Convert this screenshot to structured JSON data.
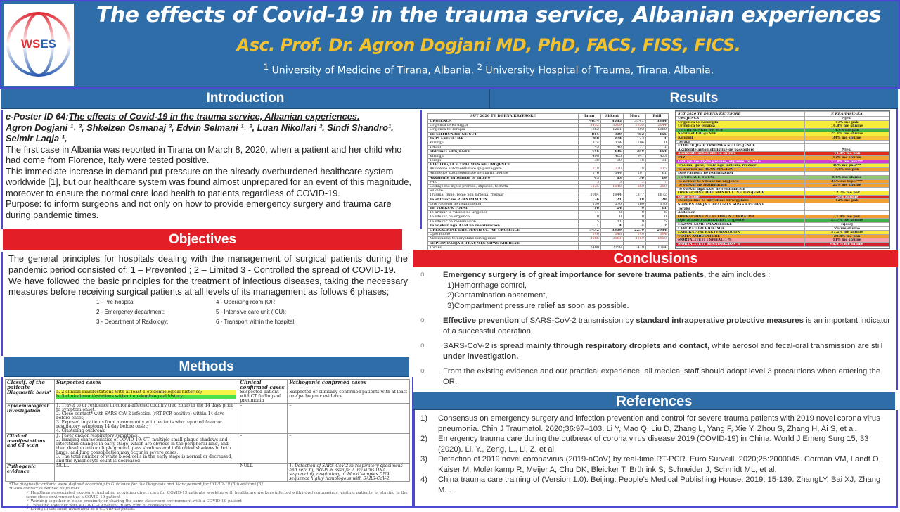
{
  "header": {
    "title": "The effects of Covid-19 in the trauma service, Albanian experiences",
    "author": "Asc. Prof. Dr. Agron Dogjani MD, PhD, FACS, FISS, FICS.",
    "affil1_sup": "1",
    "affil1": "University of Medicine of Tirana, Albania.",
    "affil2_sup": "2",
    "affil2": "University Hospital of Trauma, Tirana, Albania.",
    "logo_text": "WSES",
    "colors": {
      "header": "#2f6da8",
      "author": "#f2c12e",
      "section_red": "#e41e26"
    }
  },
  "sections": {
    "introduction": "Introduction",
    "results": "Results",
    "objectives": "Objectives",
    "methods": "Methods",
    "conclusions": "Conclusions",
    "references": "References"
  },
  "introduction": {
    "poster_id": "e-Poster ID 64:",
    "poster_title": "The effects of Covid-19 in the trauma service, Albanian experiences.",
    "authors": "Agron Dogjani ¹˒ ², Shkelzen Osmanaj ², Edvin Selmani ¹˒ ², Luan Nikollari ², Sindi Shandro¹, Seimir Laqja ¹,",
    "p1": "The first case in Albania was reported in Tirana on March 8, 2020, when a patient and her child who had come from Florence, Italy were tested positive.",
    "p2": "This immediate increase in demand put pressure on the already overburdened healthcare system worldwide [1], but our healthcare system was found almost unprepared for an event of this magnitude, moreover to ensure the normal care load health to patients regardless of COVID-19.",
    "p3": "Purpose: to inform surgeons and not only on how to provide emergency surgery and trauma care during pandemic times."
  },
  "objectives": {
    "p1": "The general principles for hospitals dealing with the management of surgical patients during the pandemic period consisted of; 1 – Prevented ; 2 – Limited  3 - Controlled the spread of COVID-19.",
    "p2": "We have followed the basic principles for the treatment of infectious diseases, taking the necessary measures before receiving surgical patients at all levels of its management as follows 6 phases;",
    "phases": [
      "1 - Pre-hospital",
      "2 - Emergency department:",
      "3 - Department of Radiology:",
      "4 - Operating room (OR",
      "5 - Intensive care unit (ICU):",
      "6 - Transport within the hospital:"
    ]
  },
  "results_table_left": {
    "header": [
      "SUT 2020 TE DHENA KRYESORE",
      "Janar",
      "Shkurt",
      "Mars",
      "Prill"
    ],
    "rows": [
      [
        "URGJENCA",
        "4654",
        "4565",
        "3141",
        "3384",
        1
      ],
      [
        "Urgjenca te Kirurgjia",
        "3432",
        "3309",
        "2259",
        "2044",
        0
      ],
      [
        "Urgjenca te Terapia",
        "1262",
        "1251",
        "892",
        "1360",
        0
      ],
      [
        "TE SHTRUARIT NE SUT",
        "815",
        "809",
        "482",
        "465",
        1
      ],
      [
        "Te PLANIFIKUAR",
        "369",
        "374",
        "123",
        "1",
        1
      ],
      [
        "Kirurgji",
        "324",
        "334",
        "106",
        "0",
        0
      ],
      [
        "Terapi",
        "45",
        "40",
        "17",
        "1",
        0
      ],
      [
        "Shtrimet URGJENTE",
        "446",
        "435",
        "359",
        "464",
        1
      ],
      [
        "Kirurgji",
        "408",
        "405",
        "341",
        "433",
        0
      ],
      [
        "Terapi",
        "38",
        "30",
        "18",
        "31",
        0
      ],
      [
        "ETIOLOGJIA E TRAUMES NE URGJENCE",
        "",
        "",
        "",
        "",
        1
      ],
      [
        "Aksidente automobilistike qe passagjere",
        "218",
        "220",
        "70",
        "115",
        0
      ],
      [
        "Aksidente automobilistike qe marrin goditje",
        "176",
        "144",
        "107",
        "61",
        0
      ],
      [
        "Aksidente automobil te shtrire",
        "45",
        "63",
        "30",
        "19",
        1
      ],
      [
        "PAZ",
        "5",
        "5",
        "2",
        "7",
        0
      ],
      [
        "Godinje me mjete prerese, shpuese, te forta",
        "1125",
        "1140",
        "850",
        "250",
        0
      ],
      [
        "Suicide",
        "",
        "",
        "",
        "",
        0
      ],
      [
        "Trauma, gune, renie nga lartesia, rrezuar",
        "2084",
        "1944",
        "1377",
        "1672",
        0
      ],
      [
        "Te shtruar ne REANIMACION",
        "26",
        "21",
        "18",
        "28",
        1
      ],
      [
        "Dite Pacienti ne reanimacion",
        "150",
        "170",
        "160",
        "170",
        0
      ],
      [
        "TE VDEKUR TOTAL",
        "16",
        "24",
        "9",
        "11",
        1
      ],
      [
        "Te ardhur te vdekur ne urgjence",
        "11",
        "8",
        "0",
        "6",
        0
      ],
      [
        "Te vdekur ne urgjence",
        "0",
        "0",
        "0",
        "0",
        0
      ],
      [
        "Te vdekur ne reanimacion",
        "5",
        "11",
        "9",
        "5",
        0
      ],
      [
        "Te vdekur nga AAM ne reanimacion",
        "1",
        "4",
        "4",
        "2",
        1
      ],
      [
        "OPERACIONE DHE MANIPUL. NE URGJENCE",
        "3432",
        "3309",
        "2259",
        "2044",
        1
      ],
      [
        "Operacione",
        "146",
        "148",
        "140",
        "194",
        0
      ],
      [
        "Manipulime te ndryshme kirurgjikale",
        "3286",
        "3161",
        "2159",
        "1850",
        0
      ],
      [
        "SHPERNDARJA E TRAUMES SIPAS KREHEVE",
        "",
        "",
        "",
        "",
        1
      ],
      [
        "Toraks",
        "2400",
        "2258",
        "1419",
        "1794",
        0
      ]
    ]
  },
  "results_table_right": {
    "header": [
      "SUT 2020 TE DHENA KRYESORE",
      "E KRAHASUARA"
    ],
    "rows": [
      [
        "URGJENCA",
        "Njesi",
        "#ffffff"
      ],
      [
        "Urgjenca te Kirurgjia",
        "13% me pak",
        "#f7ec3a"
      ],
      [
        "Urgjenca te Terapia",
        "16.8% me shume",
        "#f7ec3a"
      ],
      [
        "TE SHTRUARIT NE SUT",
        "4.8% me pak",
        "#3fb24a"
      ],
      [
        "Shtrimet URGJENTE",
        "25.1% me shume",
        "#f7ec3a"
      ],
      [
        "Kirurgji",
        "34% me shume",
        "#f5c43a"
      ],
      [
        "Terapi",
        "",
        "#ffffff"
      ],
      [
        "ETIOLOGJIA E TRAUMES NE URGJENCE",
        "",
        "#ffffff"
      ],
      [
        "Aksidente automobilistike qe passagjere",
        "Njesi",
        "#ffffff"
      ],
      [
        "Aksidente automobil te shtrire",
        "44.8% me pak",
        "#e0281e"
      ],
      [
        "PAZ",
        "13% me shume",
        "#f0a030"
      ],
      [
        "Godinje me mjete prerese, shpuese, te forta",
        "17.8% me pak***",
        "#d23ad8"
      ],
      [
        "Trauma, gune, renie nga lartesia, rrezuar",
        "10% me pak***",
        "#f7ec3a"
      ],
      [
        "Te shtruar ne REANIMACION",
        "7.8% me pak",
        "#f0a030"
      ],
      [
        "Dite Pacienti ne reanimacion",
        "",
        "#ffffff"
      ],
      [
        "TE VDEKUR TOTAL",
        "8.6% me shume",
        "#8cc873"
      ],
      [
        "Te ardhur te vdekur ne urgjence",
        "25% me teper***",
        "#f0a030"
      ],
      [
        "Te vdekur ne reanimacion",
        "25% me shume",
        "#f0a030"
      ],
      [
        "Te vdekur nga AAM ne reanimacion",
        "",
        "#ffffff"
      ],
      [
        "OPERACIONE DHE MANIPUL. NE URGJENCE",
        "12.7% me pak",
        "#f7ec3a"
      ],
      [
        "Operacione",
        "20% Shume",
        "#e0281e"
      ],
      [
        "Manipulime te ndryshme kirurgjikale",
        "12% me pak",
        "#f0a030"
      ],
      [
        "SHPERNDARJA E TRAUMES SIPAS KREHEVE",
        "",
        "#ffffff"
      ],
      [
        "Toraks",
        "",
        "#ffffff"
      ],
      [
        "Abdomen",
        "",
        "#ffffff"
      ],
      [
        "OPERACIONE NE BLLOKUN OPERATOR",
        "11.4% me pak",
        "#f0a030"
      ],
      [
        "Operacione Planifikuara / Urgjence",
        "25.7% me shume",
        "#3fb24a"
      ],
      [
        "EKZAMINIME IMAZHERIKE",
        "Njesoj",
        "#ffffff"
      ],
      [
        "LABORATORI BIOKIMIK",
        "5% me shume",
        "#ffffff"
      ],
      [
        "LABORATORI BAKTERIOLOGJIK",
        "37.2% me shume",
        "#f7ec3a"
      ],
      [
        "VIZITA AMBULATORE",
        "20.4% me pak",
        "#f0a030"
      ],
      [
        "MORTALITETI I SPITALIT %",
        "11% me shume",
        "#f5a0b0"
      ],
      [
        "MORTALITETI REANIMACION %",
        "98.8 % me shume",
        "#d81e28"
      ]
    ]
  },
  "conclusions": {
    "items": [
      {
        "bold": "Emergency surgery is of great importance for severe trauma patients",
        "rest": ", the aim includes :",
        "sub": [
          "1)Hemorrhage control,",
          "2)Contamination abatement,",
          "3)Compartment pressure relief as soon as possible."
        ]
      },
      {
        "b1": "Effective prevention",
        "t1": " of SARS-CoV-2 transmission by ",
        "b2": "standard intraoperative protective measures",
        "t2": " is an important indicator of a successful operation."
      },
      {
        "t1": "SARS-CoV-2 is spread ",
        "b1": "mainly through respiratory droplets and contact,",
        "t2": " while aerosol and fecal-oral transmission are still ",
        "b2": "under investigation."
      },
      {
        "t1": "From the existing evidence and our practical experience, all medical staff should adopt level 3 precautions when entering the OR."
      }
    ]
  },
  "references": [
    {
      "num": "1)",
      "text": "Consensus on emergency surgery and infection prevention and control for severe trauma patients with 2019 novel corona virus pneumonia. Chin J Traumatol. 2020;36:97–103. Li Y, Mao Q, Liu D, Zhang L, Yang F, Xie Y, Zhou S, Zhang H, Ai S, et al."
    },
    {
      "num": "2)",
      "text": "Emergency trauma care during the outbreak of corona virus disease 2019 (COVID-19) in China. World J Emerg Surg 15, 33 (2020). Li, Y., Zeng, L., Li, Z. et al."
    },
    {
      "num": "3)",
      "text": "Detection of 2019 novel coronavirus (2019-nCoV) by real-time RT-PCR. Euro Surveill. 2020;25:2000045. Corman VM, Landt O, Kaiser M, Molenkamp R, Meijer A, Chu DK, Bleicker T, Brünink S, Schneider J, Schmidt ML, et al."
    },
    {
      "num": "4)",
      "text": "China trauma care training of (Version 1.0). Beijing: People's Medical Publishing House; 2019: 15-139. ZhangLY, Bai XJ, Zhang M. ."
    }
  ],
  "methods_table": {
    "header": [
      "Classif. of the patients",
      "Suspected cases",
      "Clinical confirmed cases",
      "Pathogenic confirmed cases"
    ],
    "rows": [
      {
        "c0": "Diagnostic basis*",
        "c1": [
          "a. 2 clinical manifestations with at least 1 epidemiological histories;",
          "b. 3 clinical manifestations without epidemiological history"
        ],
        "c2": "Suspected patient with CT findings of pneumonia",
        "c3": "Suspected or clinically confirmed patients with at least one pathogenic evidence"
      },
      {
        "c0": "Epidemiological investigation",
        "c1": [
          "1. Travel to or residence in corona-affected country (red zone) in the 14 days prior to symptom onset;",
          "2. Close contact* with SARS-CoV-2 infection (rRT-PCR positive) within 14 days before onset;",
          "3. Exposed to patients from a community with patients who reported fever or respiratory symptoms 14 day before onset;",
          "4. Clustering outbreak."
        ],
        "c2": "–",
        "c3": "–"
      },
      {
        "c0": "Clinical manifestations and CT scan",
        "c1": [
          "1. Fever and/or respiratory symptoms;",
          "2. Imaging characteristics of COVID-19: CT: multiple small plaque shadows and interstitial changes in early stage, which are obvious in the peripheral lung, and then develop into multiple ground glass shadows and infiltration shadows in both lungs, and lung consolidation may occur in severe cases;",
          "3. The total number of white blood cells in the early stage is normal or decreased, and the lymphocyte count is decreased"
        ],
        "c2": "–",
        "c3": "–"
      },
      {
        "c0": "Pathogenic evidence",
        "c1": [
          "NULL"
        ],
        "c2": "NULL",
        "c3": "1. Detection of SARS-CoV-2 in respiratory specimens and sera by rRT-PCR assays; 2. By virus DNA sequencing, respiratory or blood samples DNA sequence highly homologous with SARS-CoV-2"
      }
    ],
    "footnote": "*The diagnostic criteria were defined according to Guidance for the Diagnosis and Management for COVID-19 (5th edition) [3]",
    "close_contact_title": "*Close contact is defined as follows",
    "close_contact": [
      "Healthcare-associated exposure, including providing direct care for COVID-19 patients, working with healthcare workers infected with novel coronavirus, visiting patients, or staying in the same close environment as a COVID-19 patient",
      "Working together in close proximity or sharing the same classroom environment with a COVID-19 patient",
      "Traveling together with a COVID-19 patient in any kind of conveyance",
      "Living in the same household as a COVID-19 patient"
    ]
  }
}
